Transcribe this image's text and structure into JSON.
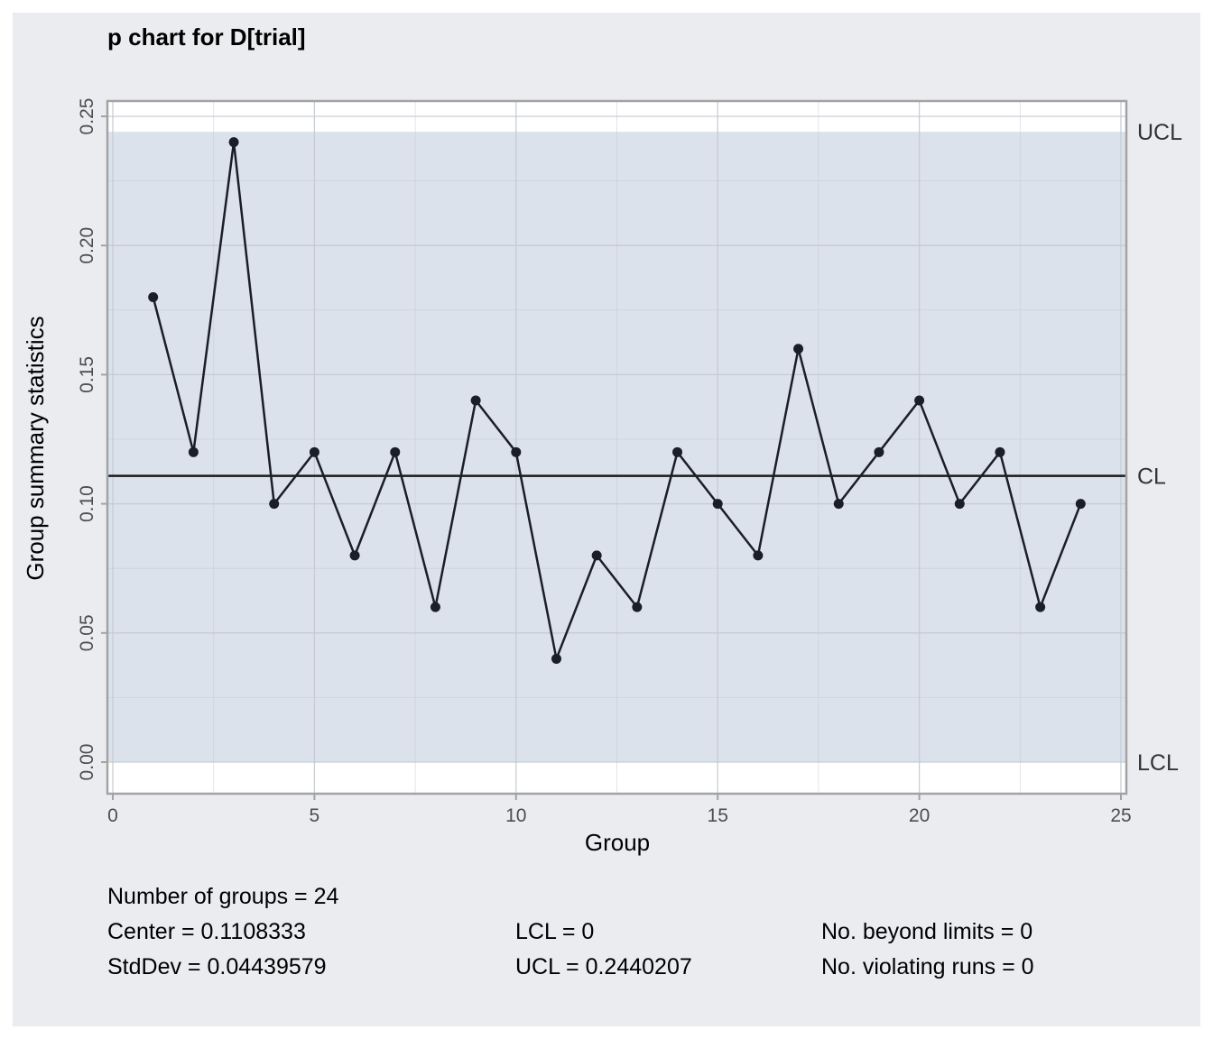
{
  "chart_data": {
    "type": "line",
    "title": "p chart for D[trial]",
    "xlabel": "Group",
    "ylabel": "Group summary statistics",
    "xlim": [
      0,
      25
    ],
    "ylim": [
      0,
      0.25
    ],
    "x_ticks": [
      "0",
      "5",
      "10",
      "15",
      "20",
      "25"
    ],
    "y_ticks": [
      "0.00",
      "0.05",
      "0.10",
      "0.15",
      "0.20",
      "0.25"
    ],
    "grid": true,
    "x": [
      1,
      2,
      3,
      4,
      5,
      6,
      7,
      8,
      9,
      10,
      11,
      12,
      13,
      14,
      15,
      16,
      17,
      18,
      19,
      20,
      21,
      22,
      23,
      24
    ],
    "series": [
      {
        "values": [
          0.18,
          0.12,
          0.24,
          0.1,
          0.12,
          0.08,
          0.12,
          0.06,
          0.14,
          0.12,
          0.04,
          0.08,
          0.06,
          0.12,
          0.1,
          0.08,
          0.16,
          0.1,
          0.12,
          0.14,
          0.1,
          0.12,
          0.06,
          0.1
        ]
      }
    ],
    "limits": {
      "center": 0.1108333,
      "lcl": 0,
      "ucl": 0.2440207,
      "labels": {
        "ucl": "UCL",
        "cl": "CL",
        "lcl": "LCL"
      }
    },
    "colors": {
      "in_control_band": "#dce2eb",
      "line": "#1a1e28",
      "grid": "#c4c9d1",
      "box": "#a3a3a3"
    }
  },
  "stats": {
    "groups": "Number of groups = 24",
    "center": "Center = 0.1108333",
    "stddev": "StdDev = 0.04439579",
    "lcl": "LCL = 0",
    "ucl": "UCL = 0.2440207",
    "beyond": "No. beyond limits = 0",
    "violating": "No. violating runs = 0"
  }
}
